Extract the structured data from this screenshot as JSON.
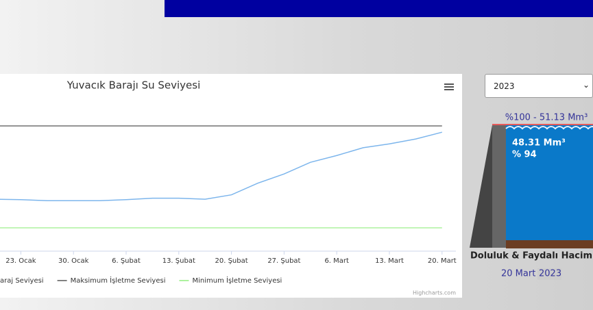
{
  "chart_data": {
    "type": "line",
    "title": "Yuvacık Barajı Su Seviyesi",
    "categories": [
      null,
      "23. Ocak",
      null,
      "30. Ocak",
      null,
      "6. Şubat",
      null,
      "13. Şubat",
      null,
      "20. Şubat",
      null,
      "27. Şubat",
      null,
      "6. Mart",
      null,
      "13. Mart",
      null,
      "20. Mart"
    ],
    "series": [
      {
        "name": "araj Seviyesi",
        "color": "#7cb5ec",
        "values": [
          153.9,
          153.8,
          153.6,
          153.6,
          153.6,
          153.8,
          154.1,
          154.1,
          153.9,
          154.8,
          157.2,
          159.1,
          161.5,
          162.9,
          164.5,
          165.3,
          166.3,
          167.7
        ]
      },
      {
        "name": "Maksimum İşletme Seviyesi",
        "color": "#555555",
        "values": [
          169,
          169,
          169,
          169,
          169,
          169,
          169,
          169,
          169,
          169,
          169,
          169,
          169,
          169,
          169,
          169,
          169,
          169
        ]
      },
      {
        "name": "Minimum İşletme Seviyesi",
        "color": "#90ed7d",
        "values": [
          148,
          148,
          148,
          148,
          148,
          148,
          148,
          148,
          148,
          148,
          148,
          148,
          148,
          148,
          148,
          148,
          148,
          148
        ]
      }
    ],
    "ylim": [
      143.2,
      175.2
    ],
    "grid": false,
    "credits": "Highcharts.com"
  },
  "sidebar": {
    "year_select": "2023",
    "capacity_label": "%100 - 51.13 Mm³",
    "volume": "48.31 Mm³",
    "percent": "% 94",
    "caption": "Doluluk & Faydalı Hacim",
    "date": "20 Mart",
    "year": "2023"
  }
}
